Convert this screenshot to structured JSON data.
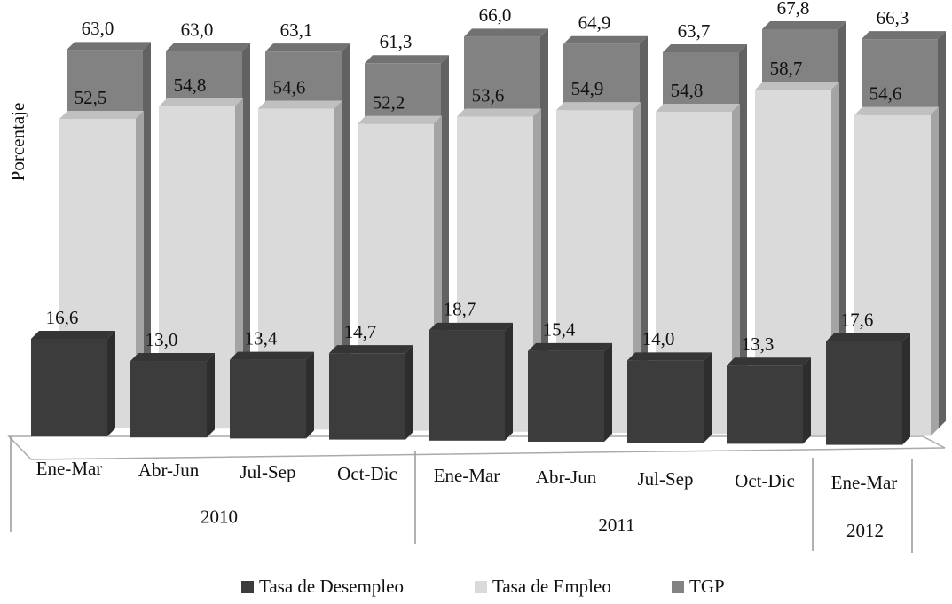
{
  "chart_data": {
    "type": "bar3d",
    "y_label": "Porcentaje",
    "groups": [
      {
        "name": "2010",
        "categories": [
          "Ene-Mar",
          "Abr-Jun",
          "Jul-Sep",
          "Oct-Dic"
        ]
      },
      {
        "name": "2011",
        "categories": [
          "Ene-Mar",
          "Abr-Jun",
          "Jul-Sep",
          "Oct-Dic"
        ]
      },
      {
        "name": "2012",
        "categories": [
          "Ene-Mar"
        ]
      }
    ],
    "series": [
      {
        "name": "Tasa de Desempleo",
        "color": "#3c3c3c",
        "values": [
          16.6,
          13.0,
          13.4,
          14.7,
          18.7,
          15.4,
          14.0,
          13.3,
          17.6
        ],
        "value_labels": [
          "16,6",
          "13,0",
          "13,4",
          "14,7",
          "18,7",
          "15,4",
          "14,0",
          "13,3",
          "17,6"
        ]
      },
      {
        "name": "Tasa de Empleo",
        "color": "#dadada",
        "values": [
          52.5,
          54.8,
          54.6,
          52.2,
          53.6,
          54.9,
          54.8,
          58.7,
          54.6
        ],
        "value_labels": [
          "52,5",
          "54,8",
          "54,6",
          "52,2",
          "53,6",
          "54,9",
          "54,8",
          "58,7",
          "54,6"
        ]
      },
      {
        "name": "TGP",
        "color": "#828282",
        "values": [
          63.0,
          63.0,
          63.1,
          61.3,
          66.0,
          64.9,
          63.7,
          67.8,
          66.3
        ],
        "value_labels": [
          "63,0",
          "63,0",
          "63,1",
          "61,3",
          "66,0",
          "64,9",
          "63,7",
          "67,8",
          "66,3"
        ]
      }
    ],
    "ylim": [
      0,
      70
    ]
  }
}
